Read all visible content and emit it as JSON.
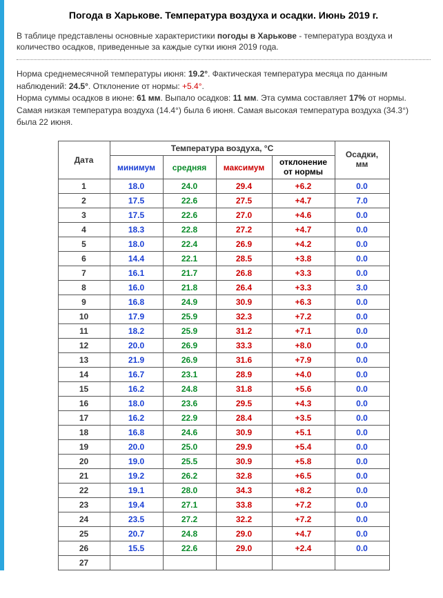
{
  "title": "Погода в Харькове. Температура воздуха и осадки. Июнь 2019 г.",
  "intro": {
    "p1a": "В таблице представлены основные характеристики ",
    "p1b": "погоды в Харькове",
    "p1c": " - температура воздуха и количество осадков, приведенные за каждые сутки июня 2019 года."
  },
  "summary": {
    "s1a": "Норма среднемесячной температуры июня: ",
    "s1b": "19.2°",
    "s1c": ". Фактическая температура месяца по данным наблюдений: ",
    "s1d": "24.5°",
    "s1e": ". Отклонение от нормы: ",
    "s1f": "+5.4°",
    "s1g": ".",
    "s2a": "Норма суммы осадков в июне: ",
    "s2b": "61 мм",
    "s2c": ". Выпало осадков: ",
    "s2d": "11 мм",
    "s2e": ". Эта сумма составляет ",
    "s2f": "17%",
    "s2g": " от нормы.",
    "s3": "Самая низкая температура воздуха (14.4°) была 6 июня. Самая высокая температура воздуха (34.3°) была 22 июня."
  },
  "table": {
    "headers": {
      "date": "Дата",
      "temp_group": "Температура воздуха, °C",
      "min": "минимум",
      "avg": "средняя",
      "max": "максимум",
      "dev": "отклонение от нормы",
      "precip": "Осадки, мм"
    },
    "rows": [
      {
        "d": "1",
        "min": "18.0",
        "avg": "24.0",
        "max": "29.4",
        "dev": "+6.2",
        "p": "0.0"
      },
      {
        "d": "2",
        "min": "17.5",
        "avg": "22.6",
        "max": "27.5",
        "dev": "+4.7",
        "p": "7.0"
      },
      {
        "d": "3",
        "min": "17.5",
        "avg": "22.6",
        "max": "27.0",
        "dev": "+4.6",
        "p": "0.0"
      },
      {
        "d": "4",
        "min": "18.3",
        "avg": "22.8",
        "max": "27.2",
        "dev": "+4.7",
        "p": "0.0"
      },
      {
        "d": "5",
        "min": "18.0",
        "avg": "22.4",
        "max": "26.9",
        "dev": "+4.2",
        "p": "0.0"
      },
      {
        "d": "6",
        "min": "14.4",
        "avg": "22.1",
        "max": "28.5",
        "dev": "+3.8",
        "p": "0.0"
      },
      {
        "d": "7",
        "min": "16.1",
        "avg": "21.7",
        "max": "26.8",
        "dev": "+3.3",
        "p": "0.0"
      },
      {
        "d": "8",
        "min": "16.0",
        "avg": "21.8",
        "max": "26.4",
        "dev": "+3.3",
        "p": "3.0"
      },
      {
        "d": "9",
        "min": "16.8",
        "avg": "24.9",
        "max": "30.9",
        "dev": "+6.3",
        "p": "0.0"
      },
      {
        "d": "10",
        "min": "17.9",
        "avg": "25.9",
        "max": "32.3",
        "dev": "+7.2",
        "p": "0.0"
      },
      {
        "d": "11",
        "min": "18.2",
        "avg": "25.9",
        "max": "31.2",
        "dev": "+7.1",
        "p": "0.0"
      },
      {
        "d": "12",
        "min": "20.0",
        "avg": "26.9",
        "max": "33.3",
        "dev": "+8.0",
        "p": "0.0"
      },
      {
        "d": "13",
        "min": "21.9",
        "avg": "26.9",
        "max": "31.6",
        "dev": "+7.9",
        "p": "0.0"
      },
      {
        "d": "14",
        "min": "16.7",
        "avg": "23.1",
        "max": "28.9",
        "dev": "+4.0",
        "p": "0.0"
      },
      {
        "d": "15",
        "min": "16.2",
        "avg": "24.8",
        "max": "31.8",
        "dev": "+5.6",
        "p": "0.0"
      },
      {
        "d": "16",
        "min": "18.0",
        "avg": "23.6",
        "max": "29.5",
        "dev": "+4.3",
        "p": "0.0"
      },
      {
        "d": "17",
        "min": "16.2",
        "avg": "22.9",
        "max": "28.4",
        "dev": "+3.5",
        "p": "0.0"
      },
      {
        "d": "18",
        "min": "16.8",
        "avg": "24.6",
        "max": "30.9",
        "dev": "+5.1",
        "p": "0.0"
      },
      {
        "d": "19",
        "min": "20.0",
        "avg": "25.0",
        "max": "29.9",
        "dev": "+5.4",
        "p": "0.0"
      },
      {
        "d": "20",
        "min": "19.0",
        "avg": "25.5",
        "max": "30.9",
        "dev": "+5.8",
        "p": "0.0"
      },
      {
        "d": "21",
        "min": "19.2",
        "avg": "26.2",
        "max": "32.8",
        "dev": "+6.5",
        "p": "0.0"
      },
      {
        "d": "22",
        "min": "19.1",
        "avg": "28.0",
        "max": "34.3",
        "dev": "+8.2",
        "p": "0.0"
      },
      {
        "d": "23",
        "min": "19.4",
        "avg": "27.1",
        "max": "33.8",
        "dev": "+7.2",
        "p": "0.0"
      },
      {
        "d": "24",
        "min": "23.5",
        "avg": "27.2",
        "max": "32.2",
        "dev": "+7.2",
        "p": "0.0"
      },
      {
        "d": "25",
        "min": "20.7",
        "avg": "24.8",
        "max": "29.0",
        "dev": "+4.7",
        "p": "0.0"
      },
      {
        "d": "26",
        "min": "15.5",
        "avg": "22.6",
        "max": "29.0",
        "dev": "+2.4",
        "p": "0.0"
      },
      {
        "d": "27",
        "min": "",
        "avg": "",
        "max": "",
        "dev": "",
        "p": ""
      }
    ]
  },
  "colors": {
    "left_stripe": "#2ba6de",
    "min": "#1a3fd4",
    "avg": "#088a28",
    "max": "#cc0000",
    "dev": "#cc0000",
    "precip": "#1a3fd4",
    "border": "#555555",
    "text": "#333333"
  }
}
